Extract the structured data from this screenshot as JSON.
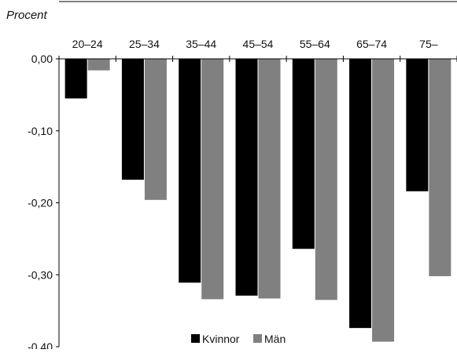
{
  "chart_data": {
    "type": "bar",
    "ylabel": "Procent",
    "categories": [
      "20–24",
      "25–34",
      "35–44",
      "45–54",
      "55–64",
      "65–74",
      "75–"
    ],
    "series": [
      {
        "name": "Kvinnor",
        "color": "#000000",
        "values": [
          -0.055,
          -0.168,
          -0.311,
          -0.329,
          -0.264,
          -0.374,
          -0.184
        ]
      },
      {
        "name": "Män",
        "color": "#808080",
        "values": [
          -0.016,
          -0.196,
          -0.334,
          -0.333,
          -0.335,
          -0.393,
          -0.302
        ]
      }
    ],
    "ylim": [
      -0.4,
      0.0
    ],
    "yticks": [
      "0,00",
      "-0,10",
      "-0,20",
      "-0,30",
      "-0,40"
    ],
    "ytick_values": [
      0.0,
      -0.1,
      -0.2,
      -0.3,
      -0.4
    ],
    "grid": false,
    "legend_position": "bottom-center"
  }
}
